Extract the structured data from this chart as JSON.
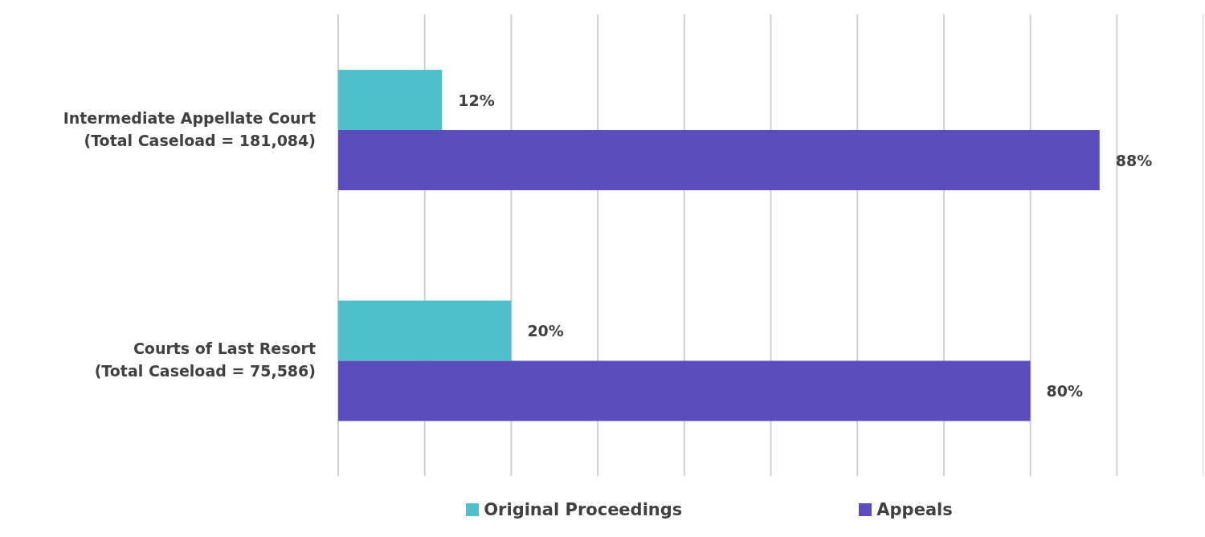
{
  "chart_data": {
    "type": "bar",
    "orientation": "horizontal",
    "categories": [
      "Intermediate Appellate Court\n(Total Caseload = 181,084)",
      "Courts of Last Resort\n(Total Caseload = 75,586)"
    ],
    "series": [
      {
        "name": "Original Proceedings",
        "color": "#4fbfcb",
        "values": [
          12,
          20
        ],
        "value_labels": [
          "12%",
          "20%"
        ]
      },
      {
        "name": "Appeals",
        "color": "#5b4dbb",
        "values": [
          88,
          80
        ],
        "value_labels": [
          "88%",
          "80%"
        ]
      }
    ],
    "xlim": [
      0,
      100
    ],
    "xticks": [
      {
        "value": 0,
        "label": null
      },
      {
        "value": 10,
        "label": null
      },
      {
        "value": 20,
        "label": null
      },
      {
        "value": 30,
        "label": null
      },
      {
        "value": 40,
        "label": null
      },
      {
        "value": 50,
        "label": null
      },
      {
        "value": 60,
        "label": null
      },
      {
        "value": 70,
        "label": null
      },
      {
        "value": 80,
        "label": null
      },
      {
        "value": 90,
        "label": null
      },
      {
        "value": 100,
        "label": null
      }
    ],
    "grid": "x",
    "legend": "bottom",
    "tick_labels": "y"
  }
}
